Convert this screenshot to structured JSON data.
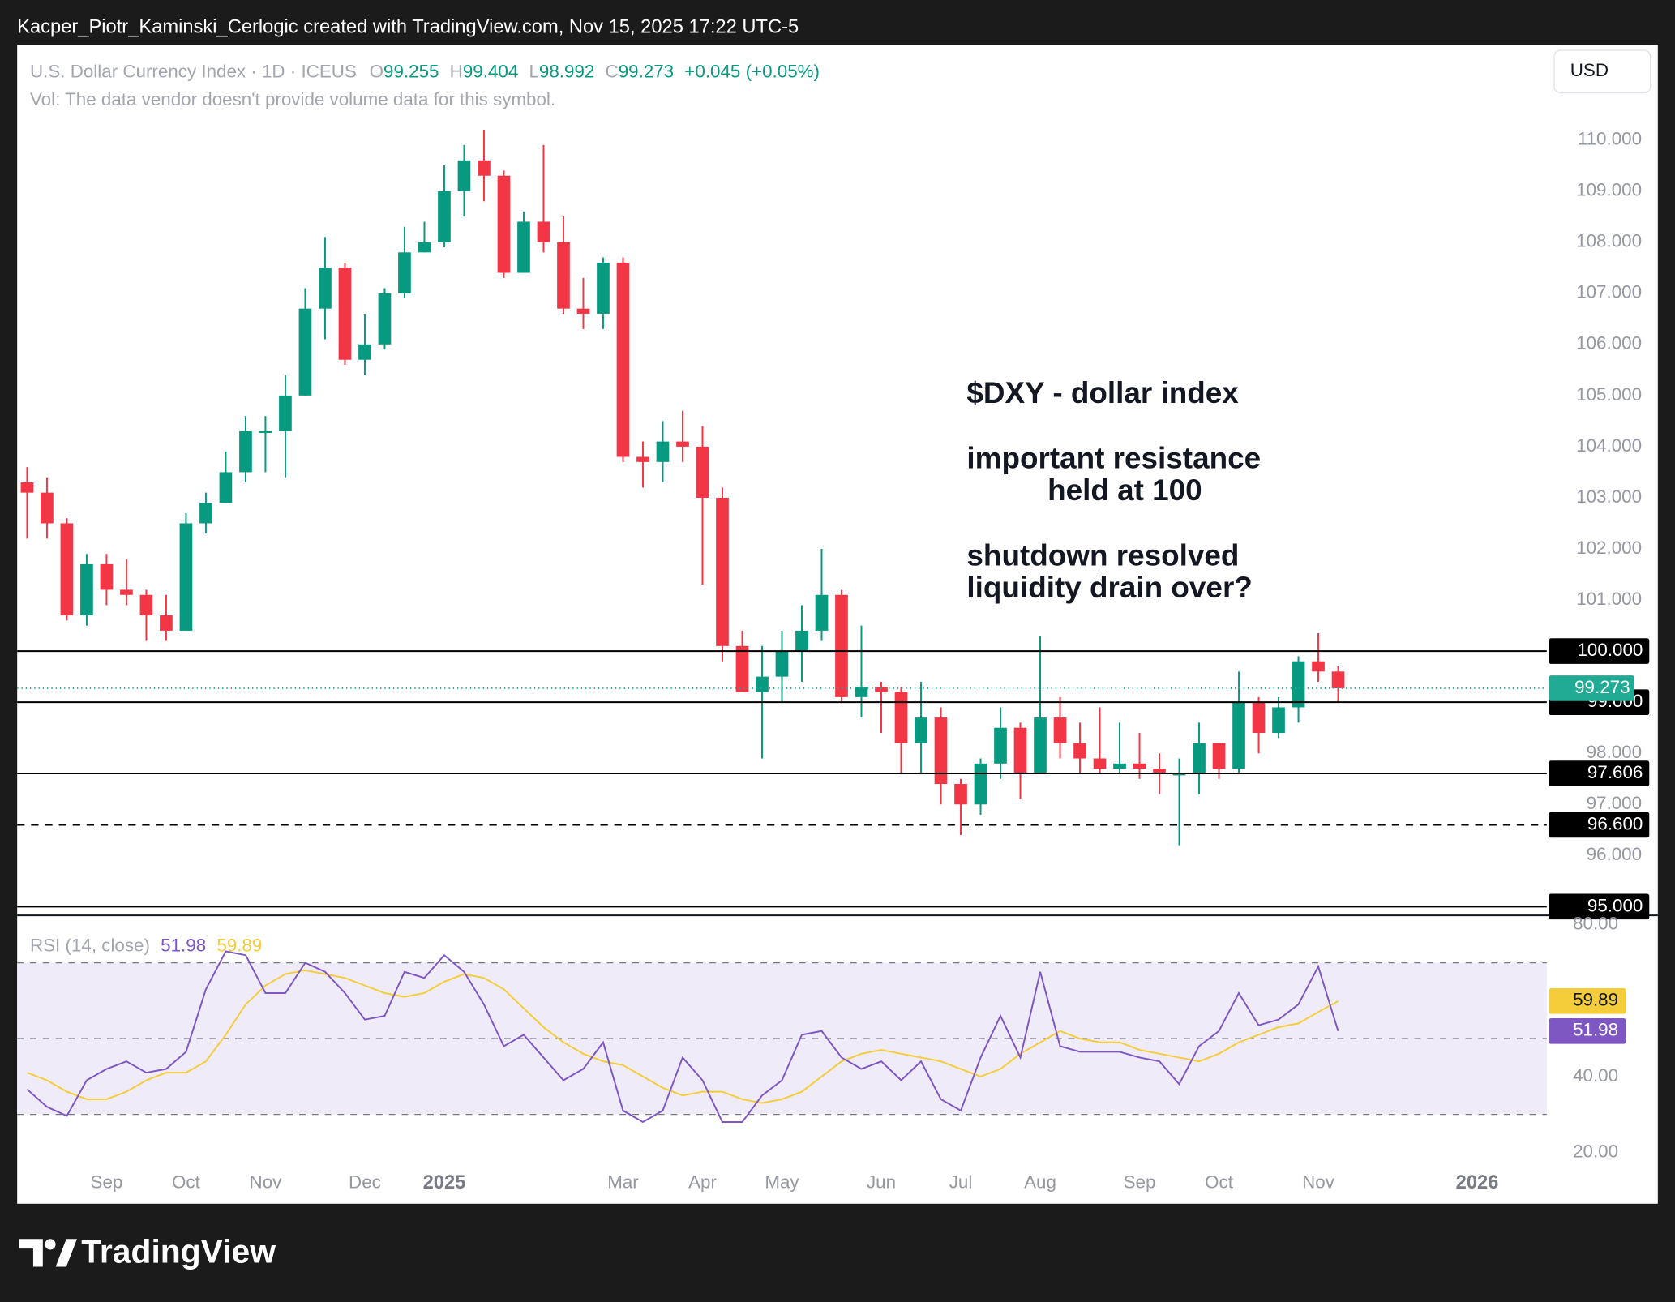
{
  "page": {
    "credit": "Kacper_Piotr_Kaminski_Cerlogic created with TradingView.com, Nov 15, 2025 17:22 UTC-5",
    "brand": "TradingView"
  },
  "chart_data": {
    "type": "candlestick",
    "legend": {
      "symbol": "U.S. Dollar Currency Index · 1D · ICEUS",
      "ohlc": [
        {
          "label": "O",
          "value": 99.255
        },
        {
          "label": "H",
          "value": 99.404
        },
        {
          "label": "L",
          "value": 98.992
        },
        {
          "label": "C",
          "value": 99.273
        }
      ],
      "change": "+0.045 (+0.05%)",
      "volume_note": "Vol: The data vendor doesn't provide volume data for this symbol."
    },
    "currency": "USD",
    "categories": [
      null,
      null,
      null,
      null,
      "Sep",
      null,
      null,
      null,
      "Oct",
      null,
      null,
      null,
      "Nov",
      null,
      null,
      null,
      null,
      "Dec",
      null,
      null,
      null,
      "2025",
      null,
      null,
      null,
      null,
      null,
      null,
      null,
      null,
      "Mar",
      null,
      null,
      null,
      "Apr",
      null,
      null,
      null,
      "May",
      null,
      null,
      null,
      null,
      "Jun",
      null,
      null,
      null,
      "Jul",
      null,
      null,
      null,
      "Aug",
      null,
      null,
      null,
      null,
      "Sep",
      null,
      null,
      null,
      "Oct",
      null,
      null,
      null,
      null,
      "Nov",
      null,
      null,
      null,
      null,
      null,
      null,
      null,
      "2026",
      null,
      null,
      null
    ],
    "open": [
      103.3,
      103.1,
      102.5,
      100.7,
      101.7,
      101.2,
      101.1,
      100.7,
      100.4,
      102.5,
      102.9,
      103.5,
      104.3,
      104.3,
      105.0,
      106.7,
      107.5,
      105.7,
      106.0,
      107.0,
      107.8,
      108.0,
      109.0,
      109.6,
      109.3,
      107.4,
      108.4,
      108.0,
      106.7,
      106.6,
      107.6,
      103.8,
      103.7,
      104.1,
      104.0,
      103.0,
      100.1,
      99.2,
      99.5,
      100.0,
      100.4,
      101.1,
      99.1,
      99.3,
      99.2,
      98.2,
      98.7,
      97.4,
      97.0,
      97.8,
      98.5,
      97.6,
      98.7,
      98.2,
      97.9,
      97.7,
      97.8,
      97.7,
      97.6,
      97.6,
      98.2,
      97.7,
      99.0,
      98.4,
      98.9,
      99.8,
      99.6,
      null,
      null,
      null,
      null,
      null,
      null,
      null,
      null,
      null,
      null
    ],
    "high": [
      103.6,
      103.4,
      102.6,
      101.9,
      101.9,
      101.8,
      101.2,
      101.1,
      102.7,
      103.1,
      103.9,
      104.6,
      104.6,
      105.4,
      107.1,
      108.1,
      107.6,
      106.6,
      107.1,
      108.3,
      108.4,
      109.5,
      109.9,
      110.2,
      109.4,
      108.6,
      109.9,
      108.5,
      107.3,
      107.7,
      107.7,
      104.1,
      104.5,
      104.7,
      104.4,
      103.2,
      100.4,
      100.1,
      100.4,
      100.9,
      102.0,
      101.2,
      100.5,
      99.4,
      99.3,
      99.4,
      98.9,
      97.5,
      97.9,
      98.9,
      98.6,
      100.3,
      99.1,
      98.6,
      98.9,
      98.6,
      98.4,
      98.0,
      97.9,
      98.6,
      98.2,
      99.6,
      99.1,
      99.1,
      99.9,
      100.35,
      99.7,
      null,
      null,
      null,
      null,
      null,
      null,
      null,
      null,
      null,
      null
    ],
    "low": [
      102.2,
      102.2,
      100.6,
      100.5,
      100.9,
      100.9,
      100.2,
      100.2,
      100.4,
      102.3,
      102.9,
      103.3,
      103.5,
      103.4,
      105.0,
      106.1,
      105.6,
      105.4,
      105.9,
      106.9,
      107.8,
      107.9,
      108.5,
      108.8,
      107.3,
      107.4,
      107.8,
      106.6,
      106.3,
      106.3,
      103.7,
      103.2,
      103.3,
      103.7,
      101.3,
      99.8,
      99.2,
      97.9,
      99.0,
      99.4,
      100.2,
      99.0,
      98.7,
      98.4,
      97.6,
      97.6,
      97.0,
      96.4,
      96.8,
      97.5,
      97.1,
      97.6,
      97.9,
      97.6,
      97.6,
      97.6,
      97.5,
      97.2,
      96.2,
      97.2,
      97.5,
      97.6,
      98.0,
      98.3,
      98.6,
      99.4,
      99.0,
      null,
      null,
      null,
      null,
      null,
      null,
      null,
      null,
      null,
      null
    ],
    "close": [
      103.1,
      102.5,
      100.7,
      101.7,
      101.2,
      101.1,
      100.7,
      100.4,
      102.5,
      102.9,
      103.5,
      104.3,
      104.3,
      105.0,
      106.7,
      107.5,
      105.7,
      106.0,
      107.0,
      107.8,
      108.0,
      109.0,
      109.6,
      109.3,
      107.4,
      108.4,
      108.0,
      106.7,
      106.6,
      107.6,
      103.8,
      103.7,
      104.1,
      104.0,
      103.0,
      100.1,
      99.2,
      99.5,
      100.0,
      100.4,
      101.1,
      99.1,
      99.3,
      99.2,
      98.2,
      98.7,
      97.4,
      97.0,
      97.8,
      98.5,
      97.6,
      98.7,
      98.2,
      97.9,
      97.7,
      97.8,
      97.7,
      97.6,
      97.6,
      98.2,
      97.7,
      99.0,
      98.4,
      98.9,
      99.8,
      99.6,
      99.273,
      null,
      null,
      null,
      null,
      null,
      null,
      null,
      null,
      null,
      null
    ],
    "up_color": "#089981",
    "down_color": "#f23645",
    "last_price_color": "#22ab94",
    "ylim": [
      94.83,
      111.86
    ],
    "yticks": [
      {
        "value": 96,
        "label": "96.000"
      },
      {
        "value": 97,
        "label": "97.000"
      },
      {
        "value": 98,
        "label": "98.000"
      },
      {
        "value": 101,
        "label": "101.000"
      },
      {
        "value": 102,
        "label": "102.000"
      },
      {
        "value": 103,
        "label": "103.000"
      },
      {
        "value": 104,
        "label": "104.000"
      },
      {
        "value": 105,
        "label": "105.000"
      },
      {
        "value": 106,
        "label": "106.000"
      },
      {
        "value": 107,
        "label": "107.000"
      },
      {
        "value": 108,
        "label": "108.000"
      },
      {
        "value": 109,
        "label": "109.000"
      },
      {
        "value": 110,
        "label": "110.000"
      }
    ],
    "levels": [
      {
        "value": 100,
        "label": "100.000",
        "dashed": false
      },
      {
        "value": 99,
        "label": "99.000",
        "dashed": false
      },
      {
        "value": 97.606,
        "label": "97.606",
        "dashed": false
      },
      {
        "value": 96.6,
        "label": "96.600",
        "dashed": true
      },
      {
        "value": 95,
        "label": "95.000",
        "dashed": false
      }
    ],
    "annotations": [
      "$DXY - dollar index",
      "important resistance",
      "held at 100",
      "shutdown resolved",
      "liquidity drain over?"
    ],
    "rsi": {
      "title": "RSI (14, close)",
      "color": "#7e57c2",
      "ma_color": "#f5cd3a",
      "band_fill": "#efebf9",
      "values": [
        36.6,
        32,
        29.6,
        39,
        42,
        44,
        41,
        42,
        46.5,
        63,
        73,
        72,
        62,
        62,
        70,
        67.6,
        62,
        55,
        56,
        67.6,
        66,
        72,
        67.6,
        59,
        48,
        51,
        45,
        39,
        42,
        49,
        31,
        28,
        31,
        45,
        39,
        28,
        28,
        35,
        39,
        51,
        52,
        45,
        42,
        44,
        39,
        44,
        34,
        31,
        45,
        56,
        45,
        67.6,
        48,
        46.5,
        46.5,
        46.5,
        45,
        44,
        38,
        48,
        52,
        62,
        53.5,
        55,
        59,
        69,
        51.98,
        null,
        null,
        null,
        null,
        null,
        null,
        null,
        null,
        null,
        null
      ],
      "ma_values": [
        41,
        39,
        36,
        34,
        34,
        36,
        39,
        41,
        41,
        44,
        51,
        59,
        64,
        67,
        68,
        67,
        66,
        64,
        62,
        61,
        62,
        65,
        67,
        66,
        63,
        58,
        53,
        49,
        46,
        44,
        43,
        40,
        37,
        35,
        36,
        36,
        34,
        33,
        34,
        36,
        40,
        44,
        46,
        47,
        46,
        45,
        44,
        42,
        40,
        42,
        46,
        49,
        52,
        50,
        49,
        49,
        47,
        46,
        45,
        44,
        46,
        49,
        51,
        53,
        54,
        57,
        59.89,
        null,
        null,
        null,
        null,
        null,
        null,
        null,
        null,
        null,
        null
      ],
      "ylim": [
        16.3,
        82.5
      ],
      "yticks": [
        {
          "value": 20,
          "label": "20.00"
        },
        {
          "value": 40,
          "label": "40.00"
        },
        {
          "value": 80,
          "label": "80.00"
        }
      ],
      "bands": [
        70,
        50,
        30
      ]
    }
  }
}
